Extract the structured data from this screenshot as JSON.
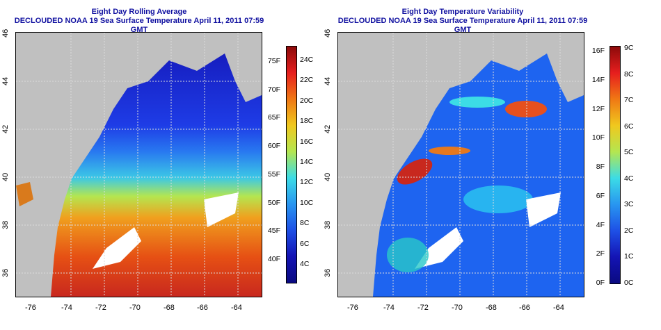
{
  "left_panel": {
    "title_line1": "Eight Day Rolling Average",
    "title_line2": "DECLOUDED NOAA 19 Sea Surface Temperature April 11, 2011 07:59 GMT",
    "colorbar_left_labels": [
      "75F",
      "70F",
      "65F",
      "60F",
      "55F",
      "50F",
      "45F",
      "40F"
    ],
    "colorbar_right_labels": [
      "24C",
      "22C",
      "20C",
      "18C",
      "16C",
      "14C",
      "12C",
      "10C",
      "8C",
      "6C",
      "4C"
    ]
  },
  "right_panel": {
    "title_line1": "Eight Day Temperature Variability",
    "title_line2": "DECLOUDED NOAA 19 Sea Surface Temperature April 11, 2011 07:59 GMT",
    "colorbar_left_labels": [
      "16F",
      "14F",
      "12F",
      "10F",
      "8F",
      "6F",
      "4F",
      "2F",
      "0F"
    ],
    "colorbar_right_labels": [
      "9C",
      "8C",
      "7C",
      "6C",
      "5C",
      "4C",
      "3C",
      "2C",
      "1C",
      "0C"
    ]
  },
  "axes": {
    "lon_labels": [
      "-76",
      "-74",
      "-72",
      "-70",
      "-68",
      "-66",
      "-64"
    ],
    "lat_labels": [
      "46",
      "44",
      "42",
      "40",
      "38",
      "36"
    ]
  },
  "colors": {
    "title": "#1010a0",
    "land": "#c0c0c0",
    "cloud": "#ffffff"
  }
}
